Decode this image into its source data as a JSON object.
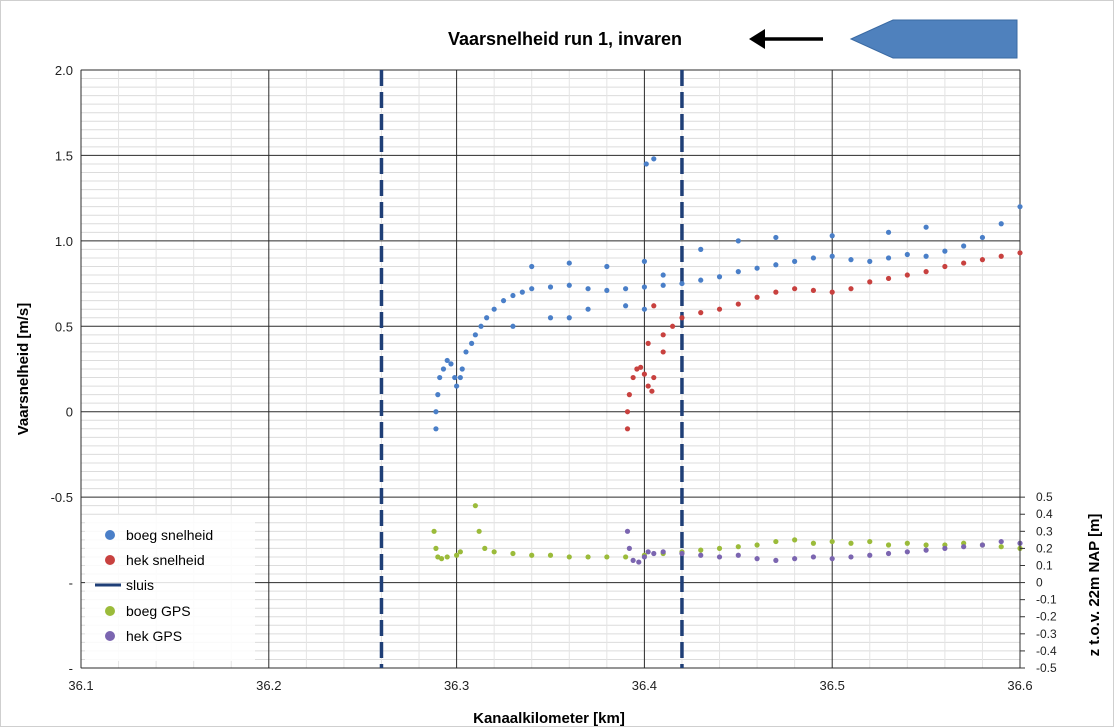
{
  "chart_data": {
    "type": "scatter",
    "title": "Vaarsnelheid run 1, invaren",
    "xlabel": "Kanaalkilometer [km]",
    "ylabel": "Vaarsnelheid [m/s]",
    "y2label": "z t.o.v. 22m NAP [m]",
    "xlim": [
      36.1,
      36.6
    ],
    "ylim": [
      -1.5,
      2.0
    ],
    "y2lim": [
      -0.5,
      0.5
    ],
    "x_ticks": [
      "36.1",
      "36.2",
      "36.3",
      "36.4",
      "36.5",
      "36.6"
    ],
    "y_ticks": [
      "2.0",
      "1.5",
      "1.0",
      "0.5",
      "0",
      "-0.5",
      "-",
      "-"
    ],
    "y2_ticks": [
      "0.5",
      "0.4",
      "0.3",
      "0.2",
      "0.1",
      "0",
      "-0.1",
      "-0.2",
      "-0.3",
      "-0.4",
      "-0.5"
    ],
    "grid": true,
    "legend_position": "bottom-left",
    "sluis_x": [
      36.26,
      36.42
    ],
    "series": [
      {
        "name": "boeg snelheid",
        "color": "#4a7fc8",
        "axis": "left",
        "points": [
          [
            36.289,
            -0.1
          ],
          [
            36.289,
            0.0
          ],
          [
            36.29,
            0.1
          ],
          [
            36.291,
            0.2
          ],
          [
            36.293,
            0.25
          ],
          [
            36.295,
            0.3
          ],
          [
            36.297,
            0.28
          ],
          [
            36.299,
            0.2
          ],
          [
            36.3,
            0.15
          ],
          [
            36.302,
            0.2
          ],
          [
            36.303,
            0.25
          ],
          [
            36.305,
            0.35
          ],
          [
            36.308,
            0.4
          ],
          [
            36.31,
            0.45
          ],
          [
            36.313,
            0.5
          ],
          [
            36.316,
            0.55
          ],
          [
            36.32,
            0.6
          ],
          [
            36.325,
            0.65
          ],
          [
            36.33,
            0.68
          ],
          [
            36.335,
            0.7
          ],
          [
            36.34,
            0.72
          ],
          [
            36.35,
            0.73
          ],
          [
            36.36,
            0.74
          ],
          [
            36.37,
            0.72
          ],
          [
            36.38,
            0.71
          ],
          [
            36.39,
            0.72
          ],
          [
            36.4,
            0.73
          ],
          [
            36.41,
            0.74
          ],
          [
            36.42,
            0.75
          ],
          [
            36.43,
            0.77
          ],
          [
            36.44,
            0.79
          ],
          [
            36.45,
            0.82
          ],
          [
            36.46,
            0.84
          ],
          [
            36.47,
            0.86
          ],
          [
            36.48,
            0.88
          ],
          [
            36.49,
            0.9
          ],
          [
            36.5,
            0.91
          ],
          [
            36.51,
            0.89
          ],
          [
            36.52,
            0.88
          ],
          [
            36.53,
            0.9
          ],
          [
            36.54,
            0.92
          ],
          [
            36.55,
            0.91
          ],
          [
            36.56,
            0.94
          ],
          [
            36.57,
            0.97
          ],
          [
            36.58,
            1.02
          ],
          [
            36.59,
            1.1
          ],
          [
            36.6,
            1.2
          ],
          [
            36.33,
            0.5
          ],
          [
            36.35,
            0.55
          ],
          [
            36.37,
            0.6
          ],
          [
            36.39,
            0.62
          ],
          [
            36.34,
            0.85
          ],
          [
            36.36,
            0.87
          ],
          [
            36.38,
            0.85
          ],
          [
            36.4,
            0.88
          ],
          [
            36.41,
            0.8
          ],
          [
            36.43,
            0.95
          ],
          [
            36.45,
            1.0
          ],
          [
            36.47,
            1.02
          ],
          [
            36.5,
            1.03
          ],
          [
            36.53,
            1.05
          ],
          [
            36.55,
            1.08
          ],
          [
            36.401,
            1.45
          ],
          [
            36.405,
            1.48
          ],
          [
            36.36,
            0.55
          ],
          [
            36.4,
            0.6
          ]
        ]
      },
      {
        "name": "hek snelheid",
        "color": "#c8413f",
        "axis": "left",
        "points": [
          [
            36.391,
            -0.1
          ],
          [
            36.391,
            0.0
          ],
          [
            36.392,
            0.1
          ],
          [
            36.394,
            0.2
          ],
          [
            36.396,
            0.25
          ],
          [
            36.398,
            0.26
          ],
          [
            36.4,
            0.22
          ],
          [
            36.402,
            0.15
          ],
          [
            36.404,
            0.12
          ],
          [
            36.405,
            0.2
          ],
          [
            36.41,
            0.45
          ],
          [
            36.415,
            0.5
          ],
          [
            36.42,
            0.55
          ],
          [
            36.43,
            0.58
          ],
          [
            36.44,
            0.6
          ],
          [
            36.45,
            0.63
          ],
          [
            36.46,
            0.67
          ],
          [
            36.47,
            0.7
          ],
          [
            36.48,
            0.72
          ],
          [
            36.49,
            0.71
          ],
          [
            36.5,
            0.7
          ],
          [
            36.51,
            0.72
          ],
          [
            36.52,
            0.76
          ],
          [
            36.53,
            0.78
          ],
          [
            36.54,
            0.8
          ],
          [
            36.55,
            0.82
          ],
          [
            36.56,
            0.85
          ],
          [
            36.57,
            0.87
          ],
          [
            36.58,
            0.89
          ],
          [
            36.59,
            0.91
          ],
          [
            36.6,
            0.93
          ],
          [
            36.41,
            0.35
          ],
          [
            36.405,
            0.62
          ],
          [
            36.402,
            0.4
          ]
        ]
      },
      {
        "name": "sluis",
        "color": "#1f3f77",
        "axis": "left",
        "points": []
      },
      {
        "name": "boeg GPS",
        "color": "#9bbb3a",
        "axis": "right",
        "points": [
          [
            36.288,
            0.3
          ],
          [
            36.289,
            0.2
          ],
          [
            36.29,
            0.15
          ],
          [
            36.292,
            0.14
          ],
          [
            36.295,
            0.15
          ],
          [
            36.3,
            0.16
          ],
          [
            36.302,
            0.18
          ],
          [
            36.31,
            0.45
          ],
          [
            36.312,
            0.3
          ],
          [
            36.315,
            0.2
          ],
          [
            36.32,
            0.18
          ],
          [
            36.33,
            0.17
          ],
          [
            36.34,
            0.16
          ],
          [
            36.35,
            0.16
          ],
          [
            36.36,
            0.15
          ],
          [
            36.37,
            0.15
          ],
          [
            36.38,
            0.15
          ],
          [
            36.39,
            0.15
          ],
          [
            36.4,
            0.16
          ],
          [
            36.41,
            0.17
          ],
          [
            36.42,
            0.18
          ],
          [
            36.43,
            0.19
          ],
          [
            36.44,
            0.2
          ],
          [
            36.45,
            0.21
          ],
          [
            36.46,
            0.22
          ],
          [
            36.47,
            0.24
          ],
          [
            36.48,
            0.25
          ],
          [
            36.49,
            0.23
          ],
          [
            36.5,
            0.24
          ],
          [
            36.51,
            0.23
          ],
          [
            36.52,
            0.24
          ],
          [
            36.53,
            0.22
          ],
          [
            36.54,
            0.23
          ],
          [
            36.55,
            0.22
          ],
          [
            36.56,
            0.22
          ],
          [
            36.57,
            0.23
          ],
          [
            36.58,
            0.22
          ],
          [
            36.59,
            0.21
          ],
          [
            36.6,
            0.2
          ]
        ]
      },
      {
        "name": "hek GPS",
        "color": "#7b65b0",
        "axis": "right",
        "points": [
          [
            36.391,
            0.3
          ],
          [
            36.392,
            0.2
          ],
          [
            36.394,
            0.13
          ],
          [
            36.397,
            0.12
          ],
          [
            36.4,
            0.15
          ],
          [
            36.402,
            0.18
          ],
          [
            36.405,
            0.17
          ],
          [
            36.41,
            0.18
          ],
          [
            36.42,
            0.17
          ],
          [
            36.43,
            0.16
          ],
          [
            36.44,
            0.15
          ],
          [
            36.45,
            0.16
          ],
          [
            36.46,
            0.14
          ],
          [
            36.47,
            0.13
          ],
          [
            36.48,
            0.14
          ],
          [
            36.49,
            0.15
          ],
          [
            36.5,
            0.14
          ],
          [
            36.51,
            0.15
          ],
          [
            36.52,
            0.16
          ],
          [
            36.53,
            0.17
          ],
          [
            36.54,
            0.18
          ],
          [
            36.55,
            0.19
          ],
          [
            36.56,
            0.2
          ],
          [
            36.57,
            0.21
          ],
          [
            36.58,
            0.22
          ],
          [
            36.59,
            0.24
          ],
          [
            36.6,
            0.23
          ]
        ]
      }
    ]
  }
}
